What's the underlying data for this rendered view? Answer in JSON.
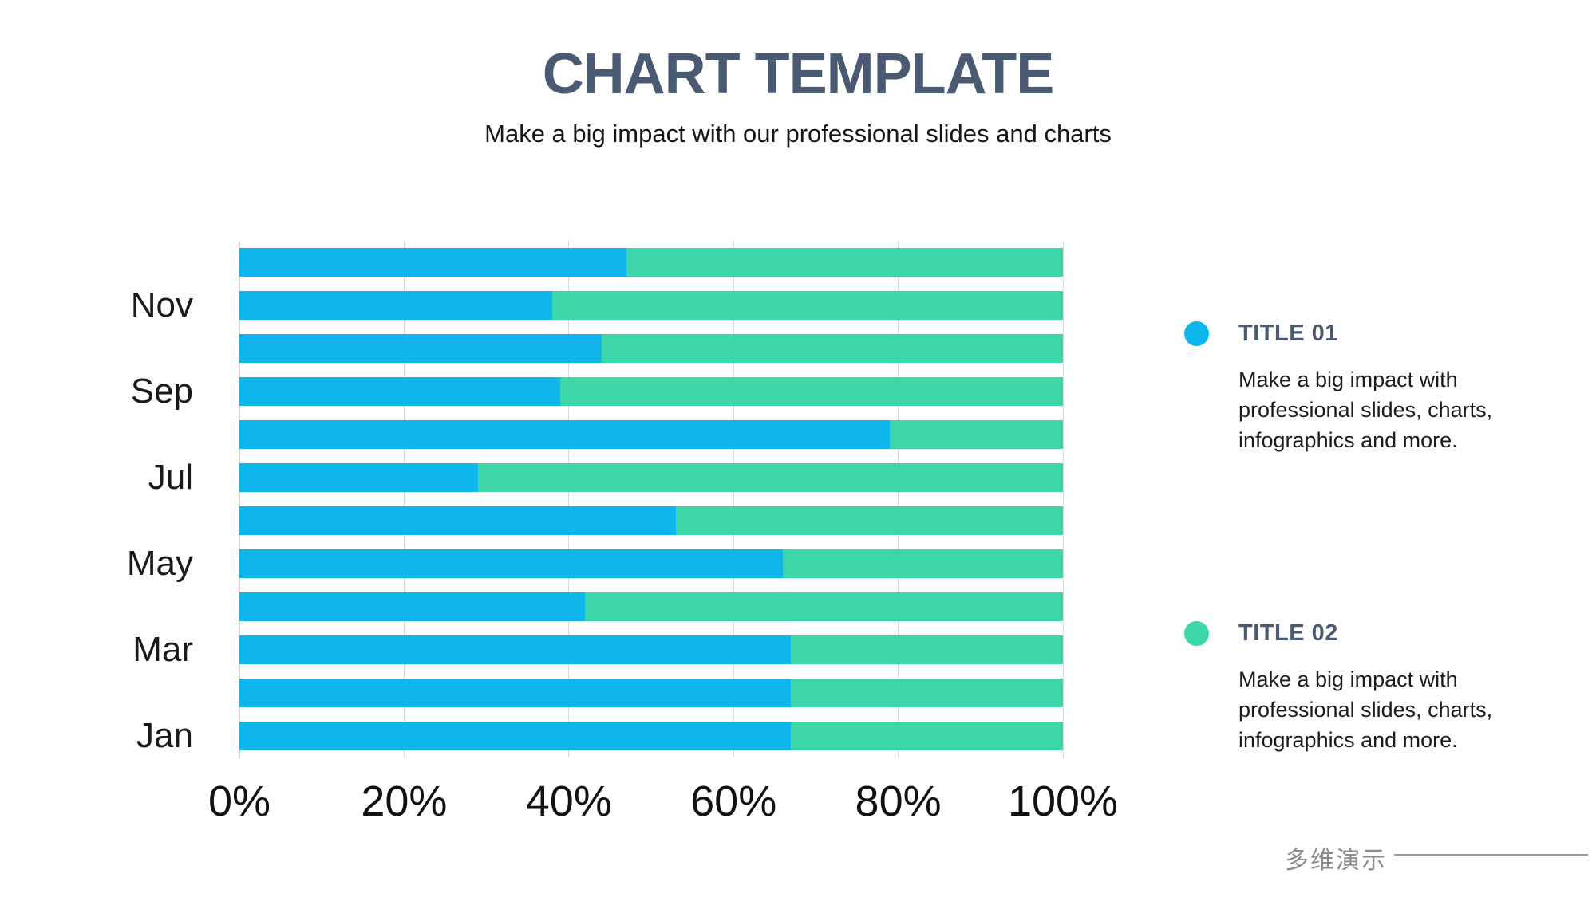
{
  "page": {
    "title": "CHART TEMPLATE",
    "subtitle": "Make a big impact with our professional slides and charts"
  },
  "colors": {
    "series1_blue": "#0FB6EB",
    "series2_green": "#3DD6A8",
    "heading_slate": "#4A5A72",
    "gridline_gray": "#D9D9D9",
    "footer_gray": "#8C8C8C"
  },
  "chart_data": {
    "type": "bar",
    "orientation": "horizontal",
    "stacked": true,
    "units": "percent",
    "title": "",
    "xlabel": "",
    "ylabel": "",
    "xlim": [
      0,
      100
    ],
    "grid": "vertical-only",
    "legend_position": "right",
    "categories": [
      "",
      "Nov",
      "",
      "Sep",
      "",
      "Jul",
      "",
      "May",
      "",
      "Mar",
      "",
      "Jan"
    ],
    "series": [
      {
        "name": "TITLE 01",
        "color": "#0FB6EB",
        "values": [
          47,
          38,
          44,
          39,
          79,
          29,
          53,
          66,
          42,
          67,
          67,
          67
        ]
      },
      {
        "name": "TITLE 02",
        "color": "#3DD6A8",
        "values": [
          53,
          62,
          56,
          61,
          21,
          71,
          47,
          34,
          58,
          33,
          33,
          33
        ]
      }
    ],
    "x_ticks": [
      "0%",
      "20%",
      "40%",
      "60%",
      "80%",
      "100%"
    ]
  },
  "legend": {
    "items": [
      {
        "title": "TITLE 01",
        "color": "#0FB6EB",
        "description": "Make a big impact with professional slides, charts, infographics and more."
      },
      {
        "title": "TITLE 02",
        "color": "#3DD6A8",
        "description": "Make a big impact with professional slides, charts, infographics and more."
      }
    ]
  },
  "footer": {
    "brand": "多维演示"
  }
}
